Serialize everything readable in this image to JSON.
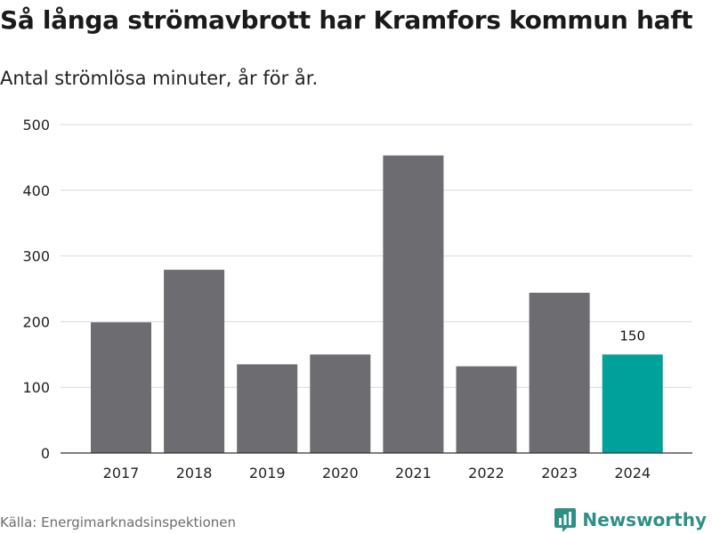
{
  "header": {
    "title": "Så långa strömavbrott har Kramfors kommun haft",
    "subtitle": "Antal strömlösa minuter, år för år."
  },
  "footer": {
    "source": "Källa: Energimarknadsinspektionen",
    "brand": "Newsworthy",
    "brand_icon": "newsworthy-logo-icon"
  },
  "colors": {
    "bar": "#6d6c71",
    "highlight": "#00a19a",
    "brand": "#2e8f86",
    "grid": "#d9d9d9"
  },
  "chart_data": {
    "type": "bar",
    "title": "Så långa strömavbrott har Kramfors kommun haft",
    "subtitle": "Antal strömlösa minuter, år för år.",
    "xlabel": "",
    "ylabel": "",
    "categories": [
      "2017",
      "2018",
      "2019",
      "2020",
      "2021",
      "2022",
      "2023",
      "2024"
    ],
    "values": [
      199,
      279,
      135,
      150,
      453,
      132,
      244,
      150
    ],
    "highlight_index": 7,
    "data_labels": [
      {
        "index": 7,
        "text": "150"
      }
    ],
    "ylim": [
      0,
      500
    ],
    "yticks": [
      0,
      100,
      200,
      300,
      400,
      500
    ],
    "grid": true
  }
}
